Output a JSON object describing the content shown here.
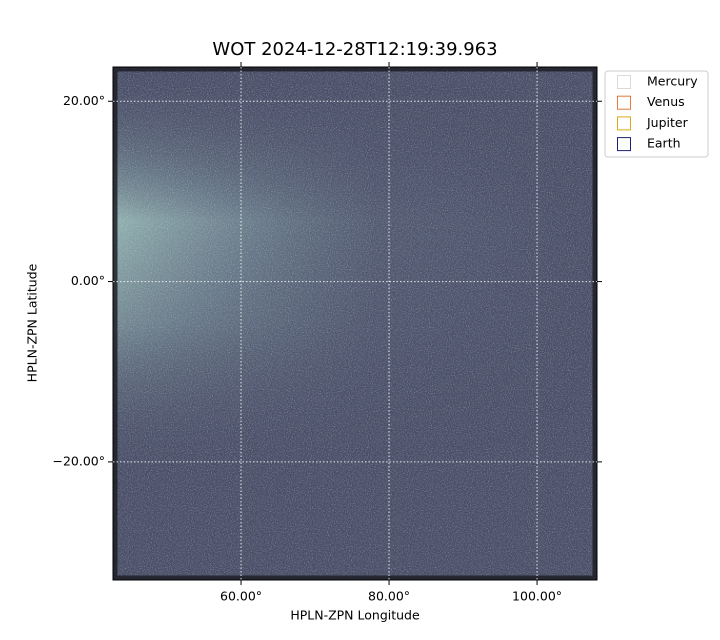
{
  "chart_data": {
    "type": "image",
    "title": "WOT 2024-12-28T12:19:39.963",
    "xlabel": "HPLN-ZPN Longitude",
    "ylabel": "HPLN-ZPN Latitude",
    "xlim": [
      42.7,
      108.1
    ],
    "ylim": [
      -33.1,
      23.8
    ],
    "xticks": [
      {
        "value": 60,
        "label": "60.00°"
      },
      {
        "value": 80,
        "label": "80.00°"
      },
      {
        "value": 100,
        "label": "100.00°"
      }
    ],
    "yticks": [
      {
        "value": 20,
        "label": "20.00°"
      },
      {
        "value": 0,
        "label": "0.00°"
      },
      {
        "value": -20,
        "label": "−20.00°"
      }
    ],
    "grid": true,
    "legend": "upper-right-outside",
    "legend_items": [
      {
        "name": "Mercury",
        "color": "#d9d9d9"
      },
      {
        "name": "Venus",
        "color": "#e07b39"
      },
      {
        "name": "Jupiter",
        "color": "#e0a81c"
      },
      {
        "name": "Earth",
        "color": "#1f1f7a"
      }
    ]
  }
}
